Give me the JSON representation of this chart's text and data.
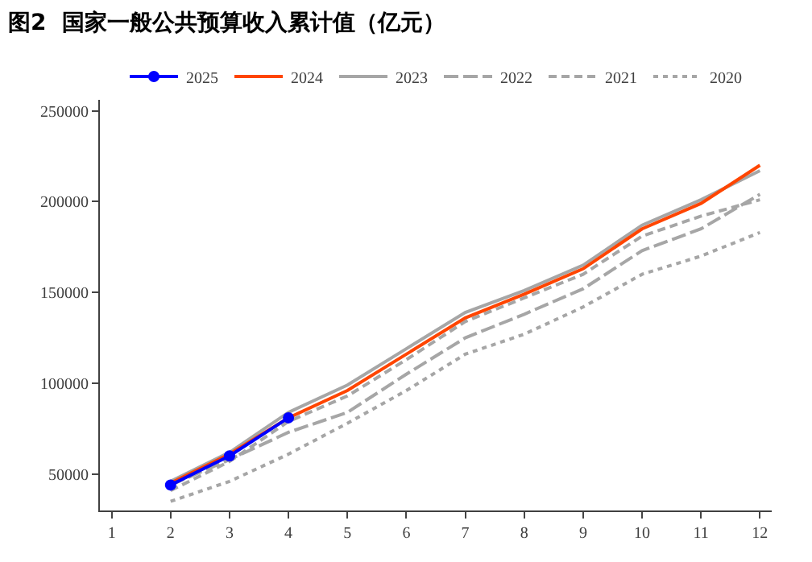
{
  "chart_data": {
    "type": "line",
    "title": "图2  国家一般公共预算收入累计值（亿元）",
    "x": [
      2,
      3,
      4,
      5,
      6,
      7,
      8,
      9,
      10,
      11,
      12
    ],
    "xlim": [
      0.8,
      12.2
    ],
    "xticks": [
      1,
      2,
      3,
      4,
      5,
      6,
      7,
      8,
      9,
      10,
      11,
      12
    ],
    "ylim": [
      30000,
      256000
    ],
    "yticks": [
      50000,
      100000,
      150000,
      200000,
      250000
    ],
    "legend": "top",
    "series": [
      {
        "name": "2025",
        "color": "#0000ff",
        "marker": "circle",
        "line_style": "solid",
        "values": [
          44000,
          60000,
          81000,
          null,
          null,
          null,
          null,
          null,
          null,
          null,
          null
        ]
      },
      {
        "name": "2024",
        "color": "#ff4500",
        "marker": "none",
        "line_style": "solid",
        "values": [
          45000,
          61000,
          81000,
          96000,
          116000,
          136000,
          149000,
          163000,
          185000,
          199000,
          220000
        ]
      },
      {
        "name": "2023",
        "color": "#a6a6a6",
        "marker": "none",
        "line_style": "solid",
        "values": [
          46000,
          62000,
          84000,
          99000,
          119000,
          139000,
          151000,
          165000,
          187000,
          201000,
          217000
        ]
      },
      {
        "name": "2022",
        "color": "#a6a6a6",
        "marker": "none",
        "line_style": "longdash",
        "values": [
          44000,
          58000,
          73000,
          84000,
          105000,
          125000,
          138000,
          152000,
          173000,
          185000,
          204000
        ]
      },
      {
        "name": "2021",
        "color": "#a6a6a6",
        "marker": "none",
        "line_style": "dashed",
        "values": [
          41000,
          57000,
          79000,
          93000,
          113000,
          134000,
          147000,
          160000,
          181000,
          192000,
          201000
        ]
      },
      {
        "name": "2020",
        "color": "#a6a6a6",
        "marker": "none",
        "line_style": "dotted",
        "values": [
          35000,
          46000,
          61000,
          78000,
          96000,
          116000,
          127000,
          142000,
          160000,
          170000,
          183000
        ]
      }
    ]
  }
}
